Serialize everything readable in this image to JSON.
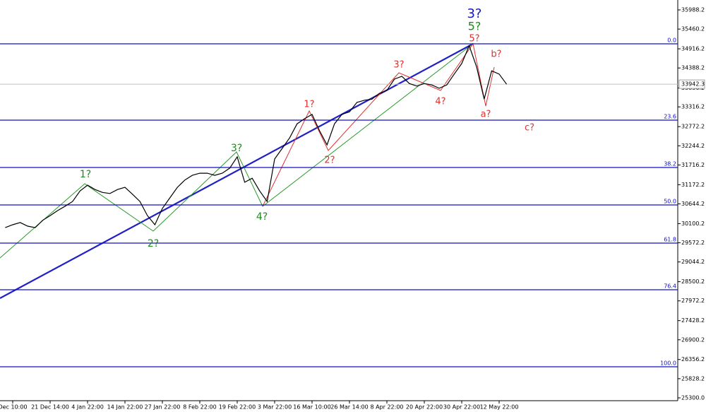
{
  "chart_data": {
    "type": "line",
    "categories": [
      null,
      "Dec 10:00",
      null,
      null,
      null,
      null,
      "21 Dec 14:00",
      null,
      null,
      null,
      null,
      "4 Jan 22:00",
      null,
      null,
      null,
      null,
      "14 Jan 22:00",
      null,
      null,
      null,
      null,
      "27 Jan 22:00",
      null,
      null,
      null,
      null,
      "8 Feb 22:00",
      null,
      null,
      null,
      null,
      "19 Feb 22:00",
      null,
      null,
      null,
      null,
      "3 Mar 22:00",
      null,
      null,
      null,
      null,
      "16 Mar 10:00",
      null,
      null,
      null,
      null,
      "26 Mar 14:00",
      null,
      null,
      null,
      null,
      "8 Apr 22:00",
      null,
      null,
      null,
      null,
      "20 Apr 22:00",
      null,
      null,
      null,
      null,
      "30 Apr 22:00",
      null,
      null,
      null,
      null,
      "12 May 22:00",
      null
    ],
    "values": [
      29990,
      30070,
      30130,
      30030,
      29990,
      30190,
      30320,
      30460,
      30580,
      30710,
      31000,
      31160,
      31040,
      30960,
      30930,
      31040,
      31100,
      30910,
      30710,
      30320,
      30070,
      30520,
      30810,
      31100,
      31300,
      31430,
      31490,
      31490,
      31430,
      31490,
      31630,
      31940,
      31240,
      31350,
      31000,
      30710,
      31880,
      32170,
      32460,
      32850,
      32990,
      33110,
      32660,
      32270,
      32850,
      33110,
      33180,
      33440,
      33500,
      33530,
      33690,
      33770,
      34080,
      34160,
      33960,
      33890,
      33960,
      33920,
      33830,
      33920,
      34220,
      34510,
      35000,
      34410,
      33530,
      34310,
      34220,
      33940
    ],
    "color": "#000000",
    "ylim": [
      25163.7,
      36260.8
    ],
    "yticks": [
      35988.2,
      35460.2,
      34916.2,
      34388.2,
      33836.2,
      33316.2,
      32772.2,
      32244.2,
      31716.2,
      31172.2,
      30644.2,
      30100.2,
      29572.2,
      29044.2,
      28500.2,
      27972.2,
      27428.2,
      26900.2,
      26356.2,
      25828.2,
      {
        "value": 25300,
        "label": "25300.0"
      }
    ],
    "current_price": 33942.3,
    "fib_levels": [
      {
        "value": 35053.7,
        "label": "0.0"
      },
      {
        "value": 32950.9,
        "label": "23.6"
      },
      {
        "value": 31646.4,
        "label": "38.2"
      },
      {
        "value": 30614.5,
        "label": "50.0"
      },
      {
        "value": 29563.1,
        "label": "61.8"
      },
      {
        "value": 28278.1,
        "label": "76.4"
      },
      {
        "value": 26155.9,
        "label": "100.0"
      }
    ],
    "fib_color": "#1010c8",
    "annotations": [
      {
        "text": "1?",
        "color": "#1a8c1a"
      },
      {
        "text": "2?",
        "color": "#1a8c1a"
      },
      {
        "text": "3?",
        "color": "#1a8c1a"
      },
      {
        "text": "4?",
        "color": "#1a8c1a"
      },
      {
        "text": "5?",
        "color": "#1a8c1a"
      },
      {
        "text": "3?",
        "color": "#1515c8"
      },
      {
        "text": "1?",
        "color": "#e03030"
      },
      {
        "text": "2?",
        "color": "#e03030"
      },
      {
        "text": "3?",
        "color": "#e03030"
      },
      {
        "text": "4?",
        "color": "#e03030"
      },
      {
        "text": "5?",
        "color": "#e03030"
      },
      {
        "text": "a?",
        "color": "#e03030"
      },
      {
        "text": "b?",
        "color": "#e03030"
      },
      {
        "text": "c?",
        "color": "#e03030"
      }
    ]
  }
}
